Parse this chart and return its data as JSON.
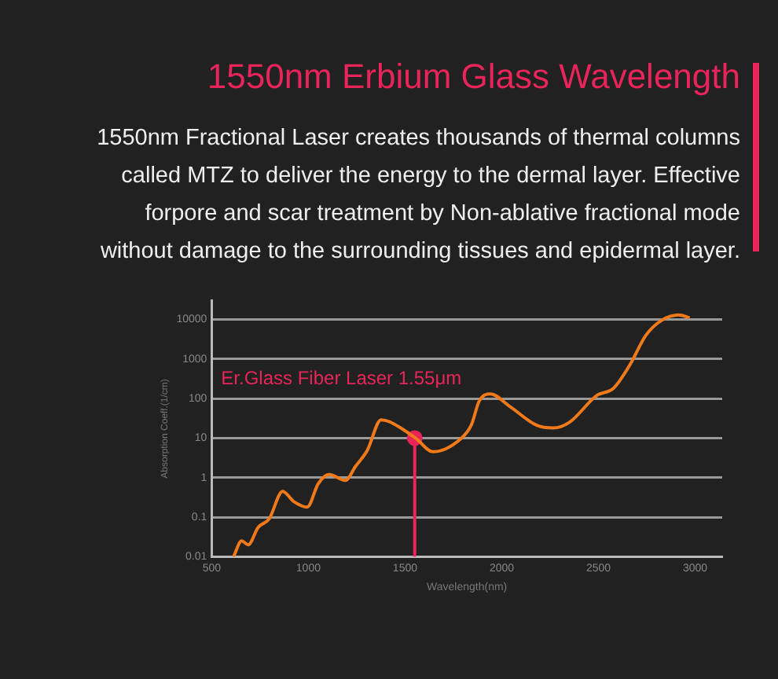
{
  "chart_data": {
    "type": "line",
    "title": "1550nm Erbium Glass Wavelength",
    "subtitle": "1550nm Fractional Laser creates thousands of thermal columns called MTZ to deliver the energy to the dermal layer. Effective forpore and scar treatment by Non-ablative fractional mode without damage to the surrounding tissues and epidermal layer.",
    "xlabel": "Wavelength(nm)",
    "ylabel": "Absorption Coeff.(1/cm)",
    "annotations": [
      "Er.Glass Fiber Laser 1.55μm"
    ],
    "log": "y",
    "grid": "y",
    "legend": false,
    "xlim": [
      500,
      3140
    ],
    "xticks": [
      500,
      1000,
      1500,
      2000,
      2500,
      3000
    ],
    "ylim": [
      0.01,
      30000
    ],
    "yticks": [
      0.01,
      0.1,
      1,
      10,
      100,
      1000,
      10000
    ],
    "series": [
      {
        "color": "#f07a1a",
        "x": [
          613,
          655,
          689,
          740,
          797,
          867,
          924,
          994,
          1051,
          1107,
          1192,
          1243,
          1305,
          1376,
          1418,
          1554,
          1644,
          1785,
          1842,
          1884,
          1941,
          2040,
          2181,
          2266,
          2350,
          2492,
          2577,
          2662,
          2746,
          2830,
          2915,
          2972
        ],
        "values": [
          0.01,
          0.025,
          0.02,
          0.055,
          0.09,
          0.45,
          0.25,
          0.18,
          0.7,
          1.2,
          0.85,
          1.9,
          4.9,
          29,
          26,
          10,
          4.5,
          9.3,
          21,
          87,
          130,
          64,
          21,
          18,
          25,
          120,
          180,
          700,
          4000,
          9700,
          13000,
          11000
        ]
      },
      {
        "type": "line",
        "color": "#e8245a",
        "x": [
          1550,
          1550
        ],
        "values": [
          0.01,
          10
        ]
      },
      {
        "type": "scatter",
        "color": "#e8245a",
        "marker": "circle",
        "x": [
          1550
        ],
        "values": [
          10
        ]
      }
    ]
  }
}
